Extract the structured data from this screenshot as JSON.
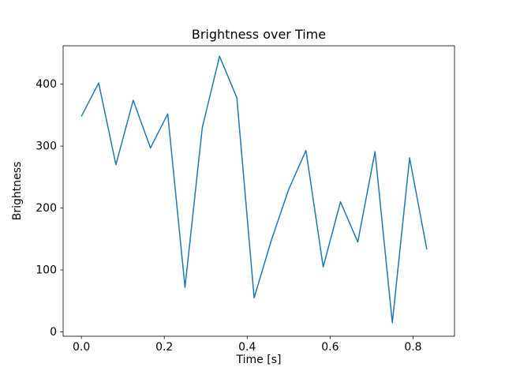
{
  "chart_data": {
    "type": "line",
    "title": "Brightness over Time",
    "xlabel": "Time [s]",
    "ylabel": "Brightness",
    "x": [
      0.0,
      0.0417,
      0.0833,
      0.125,
      0.1667,
      0.2083,
      0.25,
      0.2917,
      0.3333,
      0.375,
      0.4167,
      0.4583,
      0.5,
      0.5417,
      0.5833,
      0.625,
      0.6667,
      0.7083,
      0.75,
      0.7917,
      0.8333
    ],
    "values": [
      348,
      402,
      270,
      374,
      297,
      352,
      72,
      330,
      445,
      378,
      55,
      148,
      230,
      293,
      105,
      210,
      145,
      291,
      15,
      281,
      133
    ],
    "xlim": [
      -0.044,
      0.9
    ],
    "ylim": [
      -7,
      462
    ],
    "xticks": [
      0.0,
      0.2,
      0.4,
      0.6,
      0.8
    ],
    "xtick_labels": [
      "0.0",
      "0.2",
      "0.4",
      "0.6",
      "0.8"
    ],
    "yticks": [
      0,
      100,
      200,
      300,
      400
    ],
    "ytick_labels": [
      "0",
      "100",
      "200",
      "300",
      "400"
    ],
    "line_color": "#1f77b4",
    "axes_color": "#000000",
    "background": "#ffffff",
    "grid": false,
    "legend": null
  }
}
